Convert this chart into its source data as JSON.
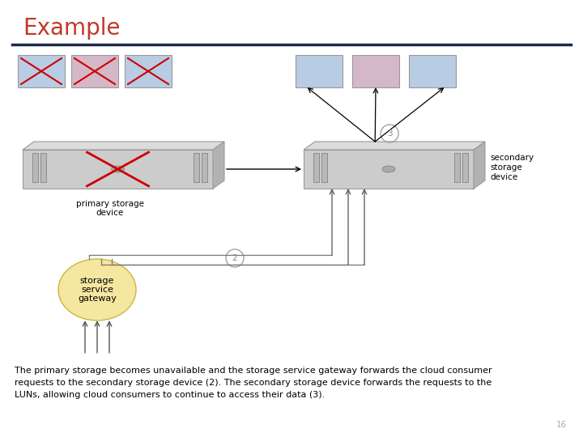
{
  "title": "Example",
  "title_color": "#c0392b",
  "title_fontsize": 20,
  "separator_color": "#1a2a4a",
  "body_text": "The primary storage becomes unavailable and the storage service gateway forwards the cloud consumer\nrequests to the secondary storage device (2). The secondary storage device forwards the requests to the\nLUNs, allowing cloud consumers to continue to access their data (3).",
  "body_text_fontsize": 8.0,
  "page_number": "16",
  "bg_color": "#ffffff",
  "lun_colors_left": [
    "#b8cce4",
    "#d4b8c8",
    "#b8cce4"
  ],
  "lun_colors_right": [
    "#b8cce4",
    "#d4b8c8",
    "#b8cce4"
  ],
  "cross_color": "#cc0000",
  "gateway_color": "#f5e6a0",
  "arrow_color": "#333333",
  "label_color": "#888888",
  "line_color": "#555555",
  "device_face": "#cccccc",
  "device_top": "#e0e0e0",
  "device_side": "#b0b0b0",
  "device_edge": "#999999",
  "bay_color": "#aaaaaa",
  "led_color": "#999999"
}
